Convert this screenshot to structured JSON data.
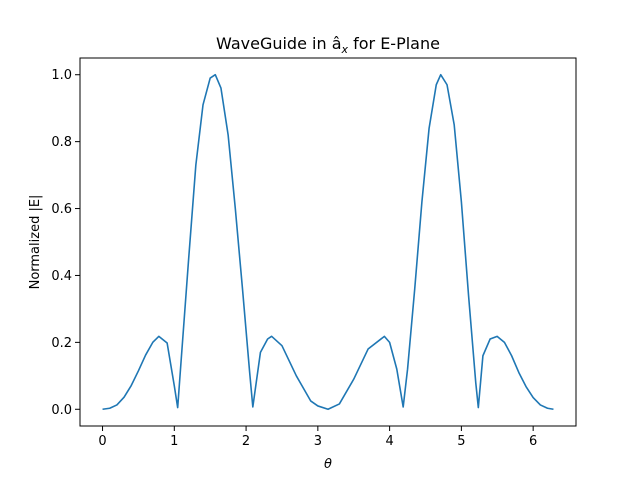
{
  "chart_data": {
    "type": "line",
    "title": "WaveGuide in â",
    "title_sub": "x",
    "title_suffix": " for E-Plane",
    "xlabel": "θ",
    "ylabel": "Normalized |E|",
    "xlim": [
      -0.314,
      6.597
    ],
    "ylim": [
      -0.05,
      1.05
    ],
    "xticks": [
      0,
      1,
      2,
      3,
      4,
      5,
      6
    ],
    "xtick_labels": [
      "0",
      "1",
      "2",
      "3",
      "4",
      "5",
      "6"
    ],
    "yticks": [
      0.0,
      0.2,
      0.4,
      0.6,
      0.8,
      1.0
    ],
    "ytick_labels": [
      "0.0",
      "0.2",
      "0.4",
      "0.6",
      "0.8",
      "1.0"
    ],
    "grid": false,
    "series": [
      {
        "color": "#1f77b4",
        "x": [
          0.0,
          0.1,
          0.2,
          0.3,
          0.4,
          0.5,
          0.6,
          0.7,
          0.785,
          0.9,
          1.0,
          1.047,
          1.1,
          1.2,
          1.3,
          1.4,
          1.5,
          1.571,
          1.65,
          1.75,
          1.85,
          1.95,
          2.05,
          2.094,
          2.2,
          2.3,
          2.356,
          2.5,
          2.7,
          2.9,
          3.0,
          3.142,
          3.3,
          3.5,
          3.7,
          3.927,
          4.0,
          4.1,
          4.189,
          4.25,
          4.35,
          4.45,
          4.55,
          4.65,
          4.712,
          4.8,
          4.9,
          5.0,
          5.1,
          5.2,
          5.236,
          5.3,
          5.4,
          5.498,
          5.6,
          5.7,
          5.8,
          5.9,
          6.0,
          6.1,
          6.2,
          6.283
        ],
        "y": [
          0.0,
          0.003,
          0.013,
          0.036,
          0.071,
          0.115,
          0.162,
          0.2,
          0.218,
          0.198,
          0.07,
          0.005,
          0.16,
          0.45,
          0.73,
          0.91,
          0.99,
          1.0,
          0.96,
          0.82,
          0.6,
          0.36,
          0.11,
          0.007,
          0.17,
          0.21,
          0.218,
          0.19,
          0.1,
          0.025,
          0.01,
          0.0,
          0.016,
          0.09,
          0.18,
          0.218,
          0.2,
          0.12,
          0.007,
          0.12,
          0.36,
          0.62,
          0.84,
          0.97,
          1.0,
          0.97,
          0.85,
          0.62,
          0.34,
          0.08,
          0.005,
          0.16,
          0.21,
          0.218,
          0.2,
          0.16,
          0.11,
          0.068,
          0.035,
          0.013,
          0.003,
          0.0
        ]
      }
    ]
  }
}
